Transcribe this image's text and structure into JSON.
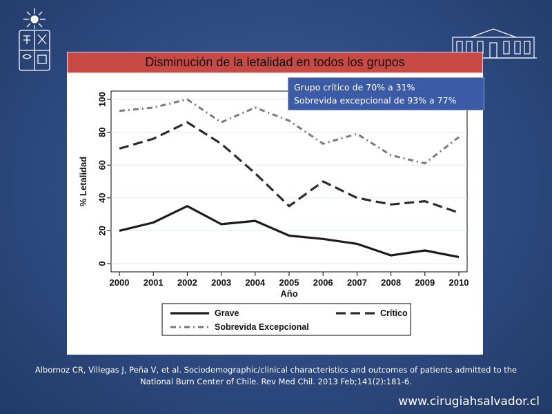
{
  "slide": {
    "title": "Disminución de la letalidad en todos los grupos",
    "callout": {
      "line1": "Grupo crítico de 70% a 31%",
      "line2": "Sobrevida excepcional de 93% a 77%"
    },
    "citation": {
      "line1": "Albornoz CR, Villegas J, Peña V, et al. Sociodemographic/clinical characteristics and outcomes of patients admitted to the",
      "line2": "National Burn Center of Chile. Rev Med Chil. 2013 Feb;141(2):181-6."
    },
    "website": "www.cirugiahsalvador.cl"
  },
  "colors": {
    "background": "#2e4a80",
    "banner": "#c74a45",
    "callout": "#3b5ba6",
    "series_grave": "#222222",
    "series_critico": "#333333",
    "series_sobrevida": "#777777"
  },
  "chart_data": {
    "type": "line",
    "title": "",
    "xlabel": "Año",
    "ylabel": "% Letalidad",
    "x": [
      2000,
      2001,
      2002,
      2003,
      2004,
      2005,
      2006,
      2007,
      2008,
      2009,
      2010
    ],
    "x_tick_labels": [
      "2000",
      "2001",
      "2002",
      "2003",
      "2004",
      "2005",
      "2006",
      "2007",
      "2008",
      "2009",
      "2010"
    ],
    "y_ticks": [
      0,
      20,
      40,
      60,
      80,
      100
    ],
    "y_tick_labels": [
      "0",
      "20",
      "40",
      "60",
      "80",
      "100"
    ],
    "ylim": [
      0,
      100
    ],
    "grid": "horizontal",
    "legend_position": "bottom",
    "series": [
      {
        "name": "Grave",
        "style": "solid",
        "values": [
          20,
          25,
          35,
          24,
          26,
          17,
          15,
          12,
          5,
          8,
          4
        ]
      },
      {
        "name": "Crítico",
        "style": "dash",
        "values": [
          70,
          76,
          86,
          73,
          55,
          35,
          50,
          40,
          36,
          38,
          31
        ]
      },
      {
        "name": "Sobrevida Excepcional",
        "style": "dashdot",
        "values": [
          93,
          95,
          100,
          86,
          95,
          87,
          73,
          79,
          66,
          61,
          77
        ]
      }
    ]
  }
}
